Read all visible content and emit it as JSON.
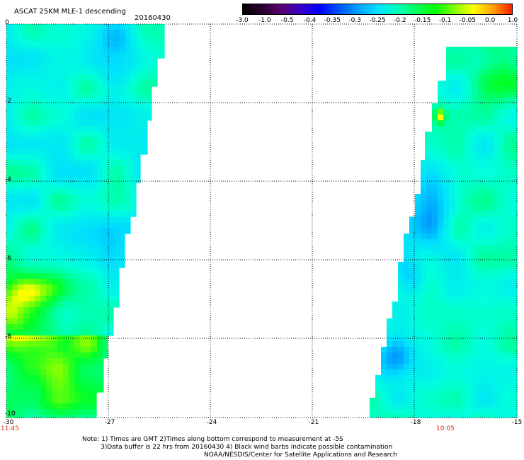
{
  "header": {
    "title": "ASCAT 25KM MLE-1 descending",
    "date": "20160430"
  },
  "colorbar": {
    "ticks": [
      "-3.0",
      "-1.0",
      "-0.5",
      "-0.4",
      "-0.35",
      "-0.3",
      "-0.25",
      "-0.2",
      "-0.15",
      "-0.1",
      "-0.05",
      "0.0",
      "1.0"
    ],
    "colors": [
      "#000000",
      "#2a0030",
      "#5a0070",
      "#3a00c8",
      "#0000ff",
      "#0055ff",
      "#00a0ff",
      "#00e0ff",
      "#00ffc0",
      "#00ff60",
      "#00ff00",
      "#80ff00",
      "#ffff00",
      "#ffa000",
      "#ff2000"
    ]
  },
  "map": {
    "y_labels": [
      "0",
      "-2",
      "-4",
      "-6",
      "-8",
      "-10"
    ],
    "x_labels": [
      "-30",
      "-27",
      "-24",
      "-21",
      "-18",
      "-15"
    ],
    "time_labels": {
      "left": "11:45",
      "right": "10:05"
    },
    "lat_range": [
      -10,
      0
    ],
    "lon_range": [
      -30,
      -15
    ]
  },
  "notes": {
    "line1": "Note: 1) Times are GMT 2)Times along bottom correspond to measurement at -5S",
    "line2": "3)Data buffer is 22 hrs from 20160430 4) Black wind barbs indicate possible contamination",
    "line3": "NOAA/NESDIS/Center for Satellite Applications and Research"
  }
}
